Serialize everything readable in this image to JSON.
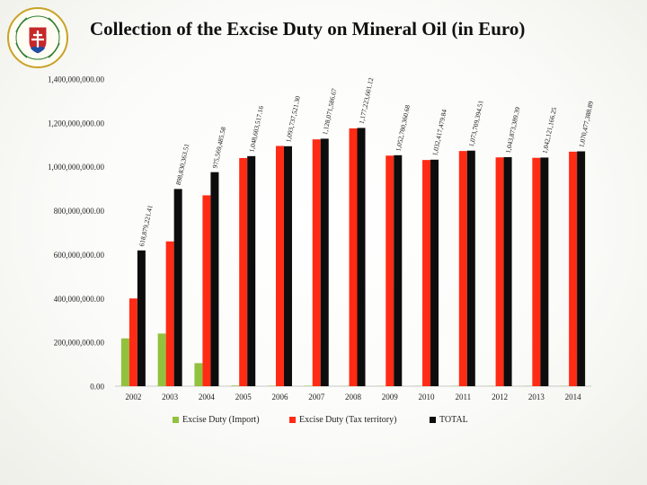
{
  "header": {
    "title": "Collection of the Excise Duty on Mineral Oil (in Euro)",
    "logo_text": "FINANČNÁ SPRÁVA"
  },
  "colors": {
    "import": "#92c13e",
    "territory": "#ff2b14",
    "total": "#0d0d0d",
    "logo_gold": "#c9a227",
    "logo_green": "#2e7d32",
    "logo_red": "#c62828",
    "logo_blue": "#1e4fa3"
  },
  "chart_data": {
    "type": "bar",
    "title": "Collection of the Excise Duty on Mineral Oil (in Euro)",
    "xlabel": "",
    "ylabel": "",
    "ylim": [
      0,
      1400000000
    ],
    "yticks": [
      0,
      200000000,
      400000000,
      600000000,
      800000000,
      1000000000,
      1200000000,
      1400000000
    ],
    "ytick_labels": [
      "0.00",
      "200,000,000.00",
      "400,000,000.00",
      "600,000,000.00",
      "800,000,000.00",
      "1,000,000,000.00",
      "1,200,000,000.00",
      "1,400,000,000.00"
    ],
    "grid": false,
    "legend_position": "bottom",
    "categories": [
      "2002",
      "2003",
      "2004",
      "2005",
      "2006",
      "2007",
      "2008",
      "2009",
      "2010",
      "2011",
      "2012",
      "2013",
      "2014"
    ],
    "series": [
      {
        "name": "Excise Duty (Import)",
        "color_key": "import",
        "values": [
          218000000,
          240000000,
          105000000,
          3000000,
          2000000,
          2000000,
          1000000,
          1000000,
          1000000,
          1000000,
          1000000,
          1000000,
          1000000
        ]
      },
      {
        "name": "Excise Duty (Tax territory)",
        "color_key": "territory",
        "values": [
          400000000,
          660000000,
          870000000,
          1040000000,
          1095000000,
          1125000000,
          1175000000,
          1051000000,
          1031000000,
          1072000000,
          1043000000,
          1041000000,
          1069000000
        ]
      },
      {
        "name": "TOTAL",
        "color_key": "total",
        "values": [
          618879221.41,
          898830363.51,
          975569485.58,
          1048603517.16,
          1093737521.3,
          1128071586.67,
          1177223601.12,
          1052780360.68,
          1032417479.84,
          1073709394.51,
          1043873389.39,
          1042121166.25,
          1070477388.89
        ]
      }
    ],
    "data_labels": [
      "618,879,221.41",
      "898,830,363.51",
      "975,569,485.58",
      "1,048,603,517.16",
      "1,093,737,521.30",
      "1,128,071,586.67",
      "1,177,223,601.12",
      "1,052,780,360.68",
      "1,032,417,479.84",
      "1,073,709,394.51",
      "1,043,873,389.39",
      "1,042,121,166.25",
      "1,070,477,388.89"
    ]
  }
}
